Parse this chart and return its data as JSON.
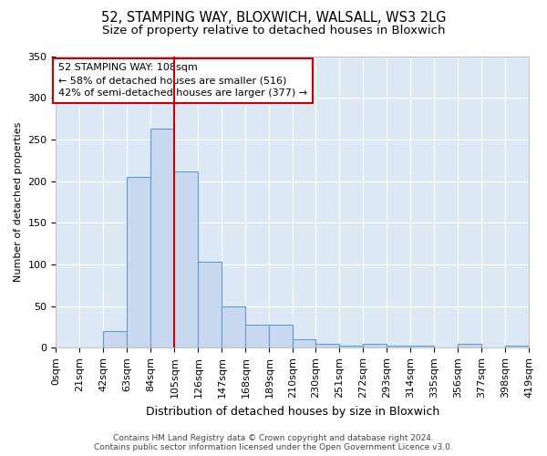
{
  "title1": "52, STAMPING WAY, BLOXWICH, WALSALL, WS3 2LG",
  "title2": "Size of property relative to detached houses in Bloxwich",
  "xlabel": "Distribution of detached houses by size in Bloxwich",
  "ylabel": "Number of detached properties",
  "bin_edges": [
    0,
    21,
    42,
    63,
    84,
    105,
    126,
    147,
    168,
    189,
    210,
    230,
    251,
    272,
    293,
    314,
    335,
    356,
    377,
    398,
    419
  ],
  "bar_heights": [
    0,
    0,
    20,
    205,
    263,
    212,
    103,
    50,
    28,
    28,
    10,
    5,
    2,
    5,
    2,
    2,
    0,
    5,
    0,
    2
  ],
  "bar_color": "#c8d8ee",
  "bar_edge_color": "#5a9fd4",
  "vline_x": 105,
  "vline_color": "#cc0000",
  "annotation_text": "52 STAMPING WAY: 108sqm\n← 58% of detached houses are smaller (516)\n42% of semi-detached houses are larger (377) →",
  "annotation_box_color": "#ffffff",
  "annotation_box_edge_color": "#cc0000",
  "ylim": [
    0,
    350
  ],
  "fig_bg_color": "#ffffff",
  "plot_bg_color": "#dde8f5",
  "grid_color": "#ffffff",
  "footer1": "Contains HM Land Registry data © Crown copyright and database right 2024.",
  "footer2": "Contains public sector information licensed under the Open Government Licence v3.0.",
  "title1_fontsize": 10.5,
  "title2_fontsize": 9.5,
  "xlabel_fontsize": 9,
  "ylabel_fontsize": 8,
  "tick_fontsize": 8,
  "annotation_fontsize": 8,
  "footer_fontsize": 6.5
}
